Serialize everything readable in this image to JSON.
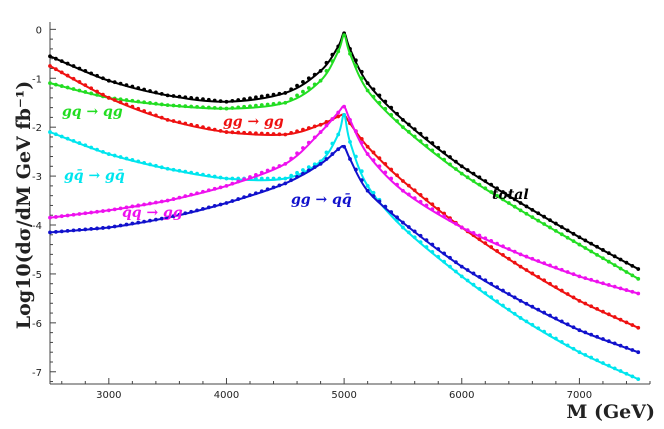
{
  "chart_data": {
    "type": "line",
    "title": "",
    "xlabel": "M (GeV)",
    "ylabel": "Log10(dσ/dM GeV fb⁻¹)",
    "xlim": [
      2500,
      7600
    ],
    "ylim": [
      -7.25,
      0.15
    ],
    "xticks": [
      3000,
      4000,
      5000,
      6000,
      7000
    ],
    "yticks": [
      0,
      -1,
      -2,
      -3,
      -4,
      -5,
      -6,
      -7
    ],
    "grid": false,
    "legend": "inline labels",
    "series": [
      {
        "label": "total",
        "color": "#000000",
        "x": [
          2500,
          3000,
          3500,
          4000,
          4500,
          4800,
          4950,
          5000,
          5050,
          5200,
          5500,
          6000,
          6500,
          7000,
          7500
        ],
        "y": [
          -0.55,
          -1.05,
          -1.35,
          -1.48,
          -1.3,
          -0.85,
          -0.35,
          -0.08,
          -0.4,
          -1.1,
          -1.85,
          -2.8,
          -3.55,
          -4.25,
          -4.9
        ]
      },
      {
        "label": "gq → qg",
        "color": "#22dd22",
        "x": [
          2500,
          3000,
          3500,
          4000,
          4500,
          4800,
          4950,
          5000,
          5050,
          5200,
          5500,
          6000,
          6500,
          7000,
          7500
        ],
        "y": [
          -1.1,
          -1.4,
          -1.55,
          -1.62,
          -1.5,
          -1.05,
          -0.45,
          -0.12,
          -0.5,
          -1.25,
          -2.0,
          -2.95,
          -3.7,
          -4.4,
          -5.1
        ]
      },
      {
        "label": "gg → gg",
        "color": "#ee1111",
        "x": [
          2500,
          3000,
          3500,
          4000,
          4500,
          4800,
          4950,
          5000,
          5050,
          5200,
          5500,
          6000,
          6500,
          7000,
          7500
        ],
        "y": [
          -0.75,
          -1.4,
          -1.85,
          -2.1,
          -2.15,
          -1.95,
          -1.78,
          -1.75,
          -1.92,
          -2.4,
          -3.1,
          -4.05,
          -4.85,
          -5.55,
          -6.1
        ]
      },
      {
        "label": "gq̄ → gq̄",
        "color": "#00e5ee",
        "x": [
          2500,
          3000,
          3500,
          4000,
          4500,
          4800,
          4950,
          5000,
          5050,
          5200,
          5500,
          6000,
          6500,
          7000,
          7500
        ],
        "y": [
          -2.1,
          -2.55,
          -2.85,
          -3.05,
          -3.05,
          -2.7,
          -2.15,
          -1.75,
          -2.3,
          -3.2,
          -4.05,
          -5.05,
          -5.9,
          -6.6,
          -7.15
        ]
      },
      {
        "label": "qq̄ → gg",
        "color": "#ee11ee",
        "x": [
          2500,
          3000,
          3500,
          4000,
          4500,
          4800,
          4950,
          5000,
          5050,
          5200,
          5500,
          6000,
          6500,
          7000,
          7500
        ],
        "y": [
          -3.85,
          -3.7,
          -3.5,
          -3.2,
          -2.75,
          -2.1,
          -1.7,
          -1.58,
          -1.85,
          -2.55,
          -3.3,
          -4.05,
          -4.6,
          -5.05,
          -5.4
        ]
      },
      {
        "label": "gg → qq̄",
        "color": "#1111cc",
        "x": [
          2500,
          3000,
          3500,
          4000,
          4500,
          4800,
          4950,
          5000,
          5050,
          5200,
          5500,
          6000,
          6500,
          7000,
          7500
        ],
        "y": [
          -4.15,
          -4.05,
          -3.85,
          -3.55,
          -3.15,
          -2.75,
          -2.45,
          -2.4,
          -2.65,
          -3.3,
          -3.95,
          -4.85,
          -5.55,
          -6.15,
          -6.6
        ]
      }
    ]
  },
  "inline_labels": [
    {
      "text": "gq → qg",
      "color": "#22dd22",
      "series": 1
    },
    {
      "text": "gg → gg",
      "color": "#ee1111",
      "series": 2
    },
    {
      "text": "gq̄ → gq̄",
      "color": "#00e5ee",
      "series": 3
    },
    {
      "text": "qq̄ → gg",
      "color": "#ee11ee",
      "series": 4
    },
    {
      "text": "gg → qq̄",
      "color": "#1111cc",
      "series": 5
    },
    {
      "text": "total",
      "color": "#000000",
      "series": 0
    }
  ]
}
